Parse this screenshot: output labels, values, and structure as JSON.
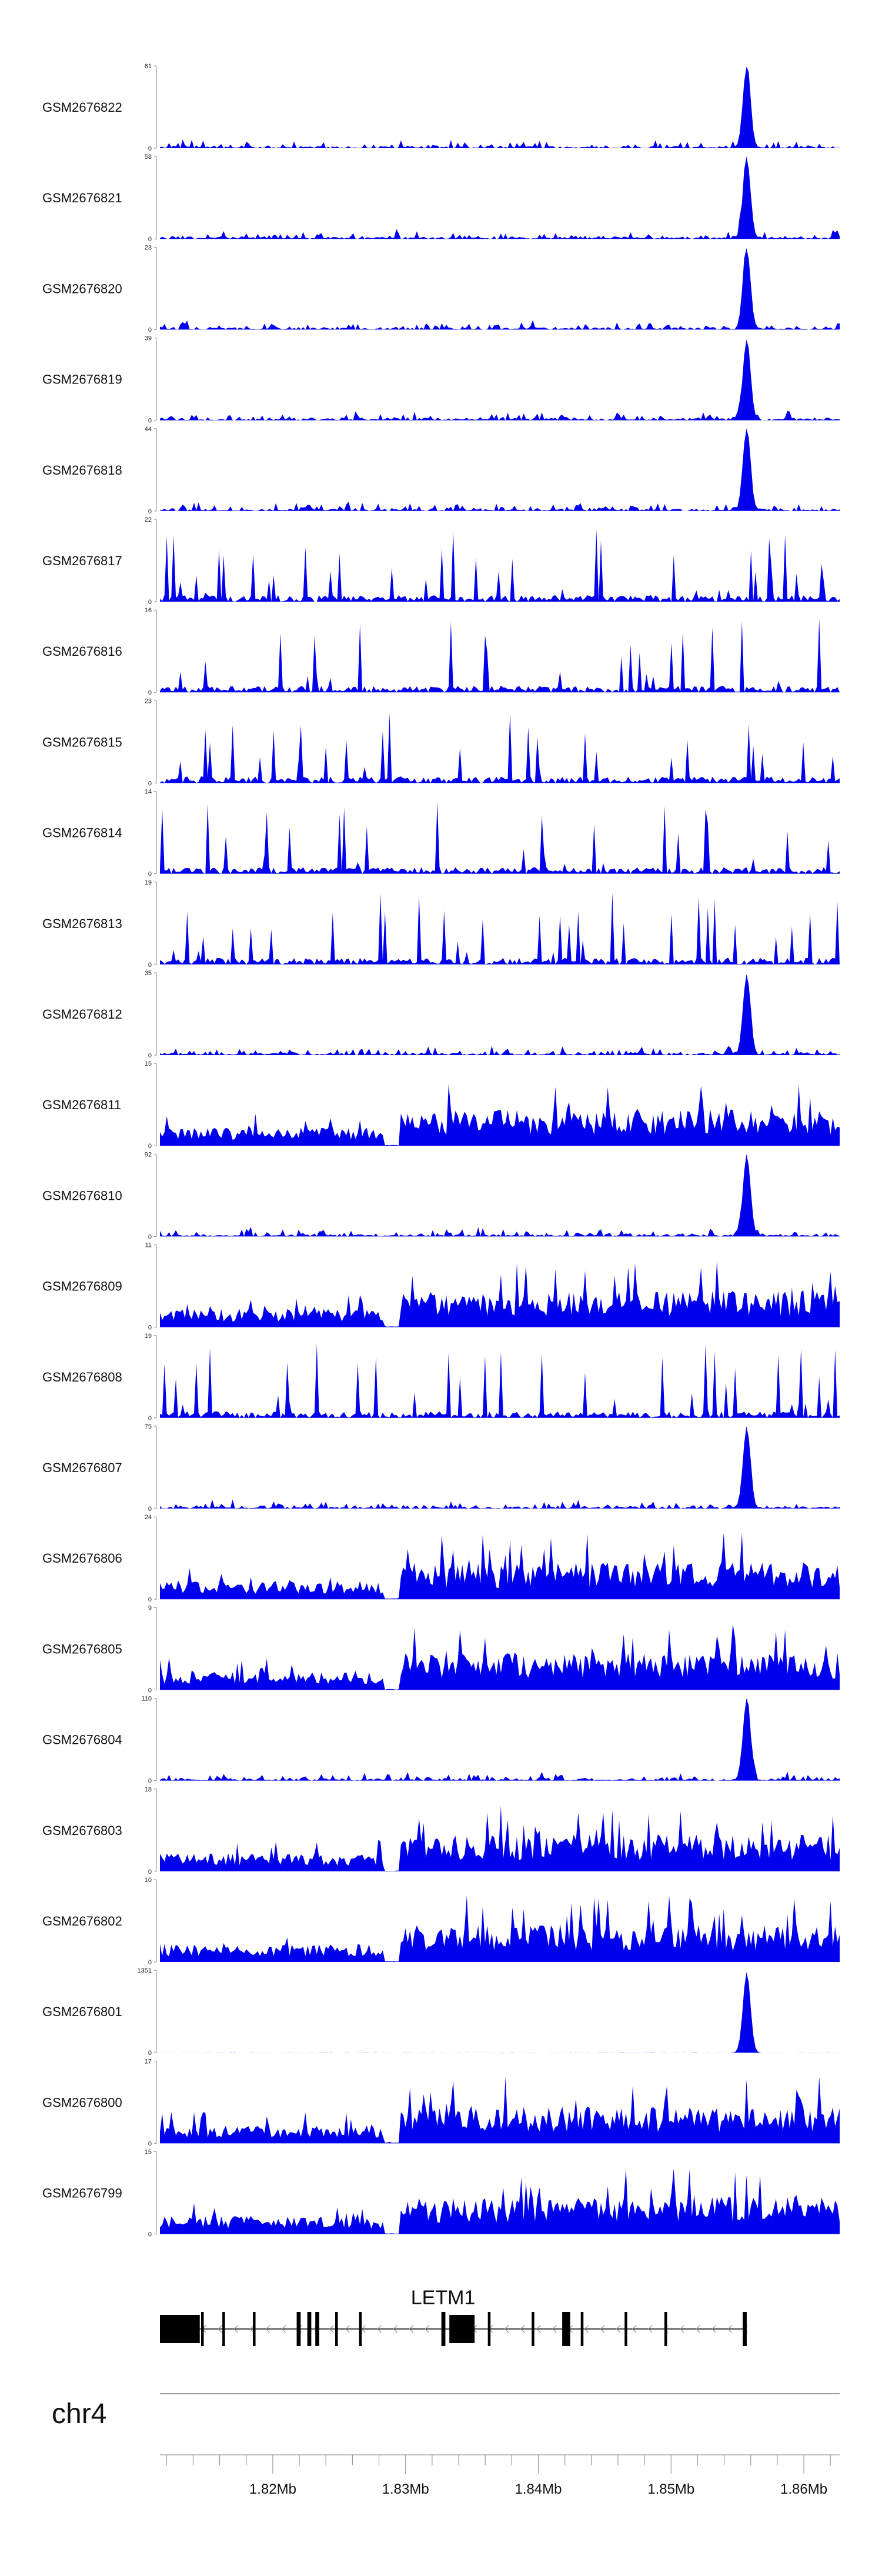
{
  "chart_data": {
    "type": "area",
    "chromosome": "chr4",
    "x_range": [
      1.8115,
      1.8627
    ],
    "x_unit": "Mb",
    "x_ticks": [
      1.82,
      1.83,
      1.84,
      1.85,
      1.86
    ],
    "x_tick_labels": [
      "1.82Mb",
      "1.83Mb",
      "1.84Mb",
      "1.85Mb",
      "1.86Mb"
    ],
    "tracks": [
      {
        "name": "GSM2676822",
        "ymax": 61,
        "peak": 1.8557,
        "profile": "peak"
      },
      {
        "name": "GSM2676821",
        "ymax": 58,
        "peak": 1.8557,
        "profile": "peak"
      },
      {
        "name": "GSM2676820",
        "ymax": 23,
        "peak": 1.8557,
        "profile": "peak"
      },
      {
        "name": "GSM2676819",
        "ymax": 39,
        "peak": 1.8557,
        "profile": "peak"
      },
      {
        "name": "GSM2676818",
        "ymax": 44,
        "peak": 1.8557,
        "profile": "peak"
      },
      {
        "name": "GSM2676817",
        "ymax": 22,
        "profile": "sparse"
      },
      {
        "name": "GSM2676816",
        "ymax": 16,
        "profile": "sparse"
      },
      {
        "name": "GSM2676815",
        "ymax": 23,
        "profile": "sparse"
      },
      {
        "name": "GSM2676814",
        "ymax": 14,
        "profile": "sparse"
      },
      {
        "name": "GSM2676813",
        "ymax": 19,
        "profile": "sparse"
      },
      {
        "name": "GSM2676812",
        "ymax": 35,
        "peak": 1.8557,
        "profile": "peak"
      },
      {
        "name": "GSM2676811",
        "ymax": 15,
        "profile": "broad"
      },
      {
        "name": "GSM2676810",
        "ymax": 92,
        "peak": 1.8557,
        "profile": "peak"
      },
      {
        "name": "GSM2676809",
        "ymax": 11,
        "profile": "broad"
      },
      {
        "name": "GSM2676808",
        "ymax": 19,
        "profile": "sparse"
      },
      {
        "name": "GSM2676807",
        "ymax": 75,
        "peak": 1.8557,
        "profile": "peak"
      },
      {
        "name": "GSM2676806",
        "ymax": 24,
        "profile": "broad"
      },
      {
        "name": "GSM2676805",
        "ymax": 9,
        "profile": "broad"
      },
      {
        "name": "GSM2676804",
        "ymax": 110,
        "peak": 1.8557,
        "profile": "peak"
      },
      {
        "name": "GSM2676803",
        "ymax": 18,
        "profile": "broad"
      },
      {
        "name": "GSM2676802",
        "ymax": 10,
        "profile": "broad"
      },
      {
        "name": "GSM2676801",
        "ymax": 1351,
        "peak": 1.8557,
        "profile": "sharp"
      },
      {
        "name": "GSM2676800",
        "ymax": 17,
        "profile": "broad"
      },
      {
        "name": "GSM2676799",
        "ymax": 15,
        "profile": "broad"
      }
    ],
    "gene": {
      "name": "LETM1",
      "start": 1.8135,
      "end": 1.8557,
      "strand": "-",
      "exons": [
        [
          1.8115,
          1.8145
        ],
        [
          1.8146,
          1.8148
        ],
        [
          1.8162,
          1.8164
        ],
        [
          1.8185,
          1.8187
        ],
        [
          1.8218,
          1.8221
        ],
        [
          1.8226,
          1.8229
        ],
        [
          1.8232,
          1.8235
        ],
        [
          1.8247,
          1.8249
        ],
        [
          1.8265,
          1.8267
        ],
        [
          1.8327,
          1.833
        ],
        [
          1.8333,
          1.8352
        ],
        [
          1.8362,
          1.8364
        ],
        [
          1.8395,
          1.8397
        ],
        [
          1.8418,
          1.8424
        ],
        [
          1.8432,
          1.8434
        ],
        [
          1.8465,
          1.8467
        ],
        [
          1.8495,
          1.8497
        ],
        [
          1.8554,
          1.8557
        ]
      ]
    },
    "colors": {
      "signal": "#0000ee",
      "axis": "#888888",
      "text": "#111111"
    }
  }
}
